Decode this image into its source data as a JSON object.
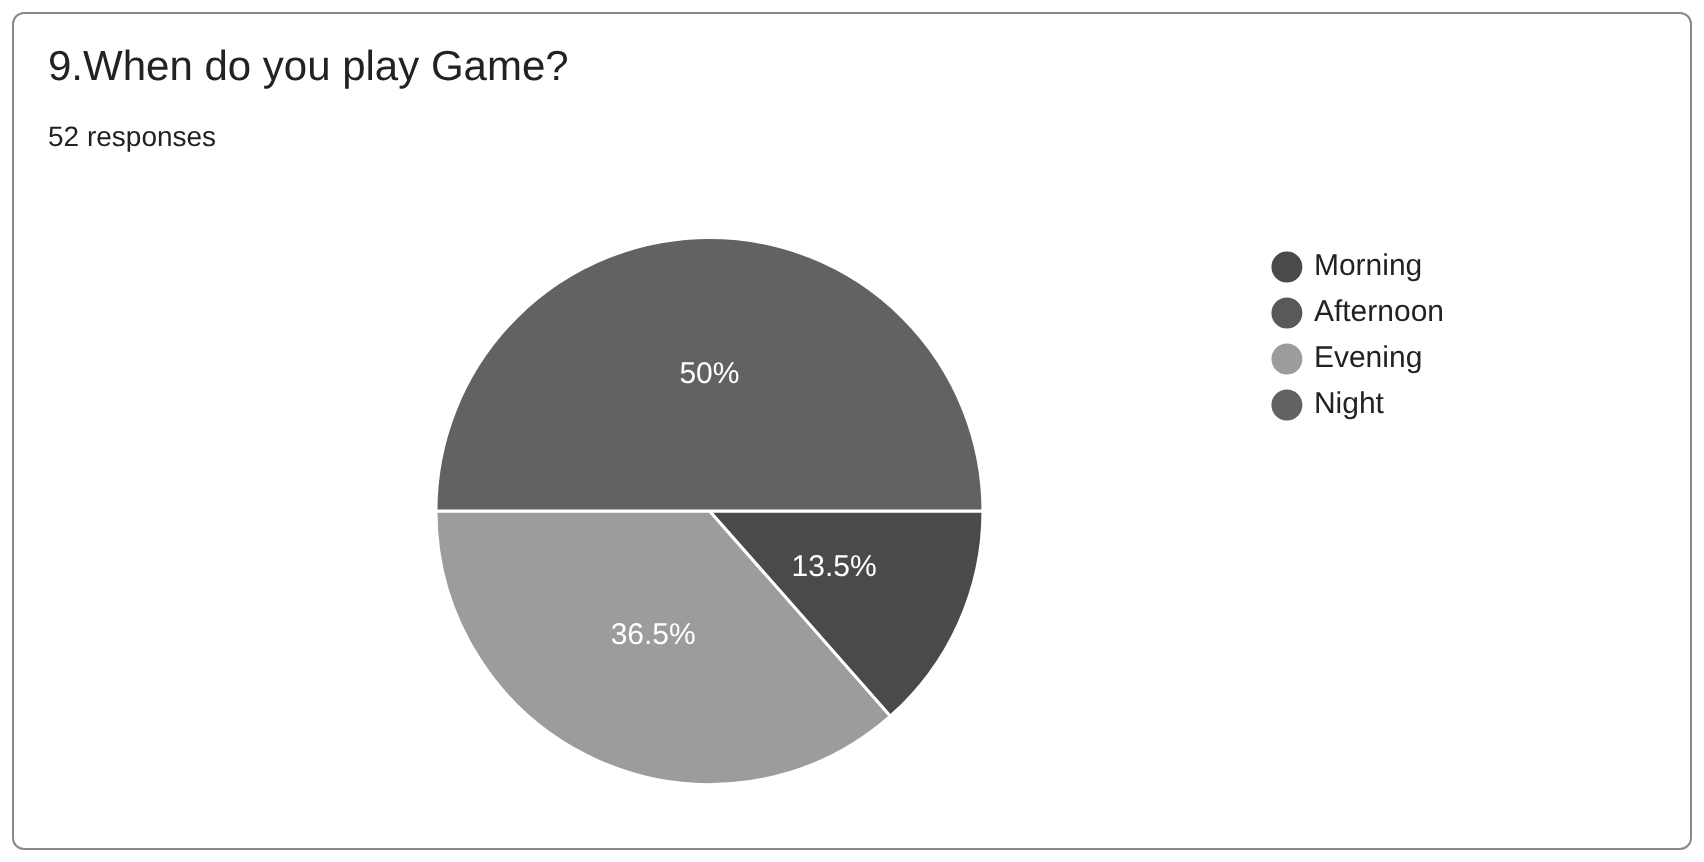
{
  "chart_data": {
    "type": "pie",
    "title": "9.When do you play Game?",
    "subtitle": "52 responses",
    "categories": [
      "Morning",
      "Afternoon",
      "Evening",
      "Night"
    ],
    "values": [
      13.5,
      0,
      36.5,
      50
    ],
    "colors": [
      "#4a4a4a",
      "#595959",
      "#9c9c9c",
      "#626262"
    ],
    "value_labels": [
      "13.5%",
      null,
      "36.5%",
      "50%"
    ],
    "legend": "top right"
  }
}
